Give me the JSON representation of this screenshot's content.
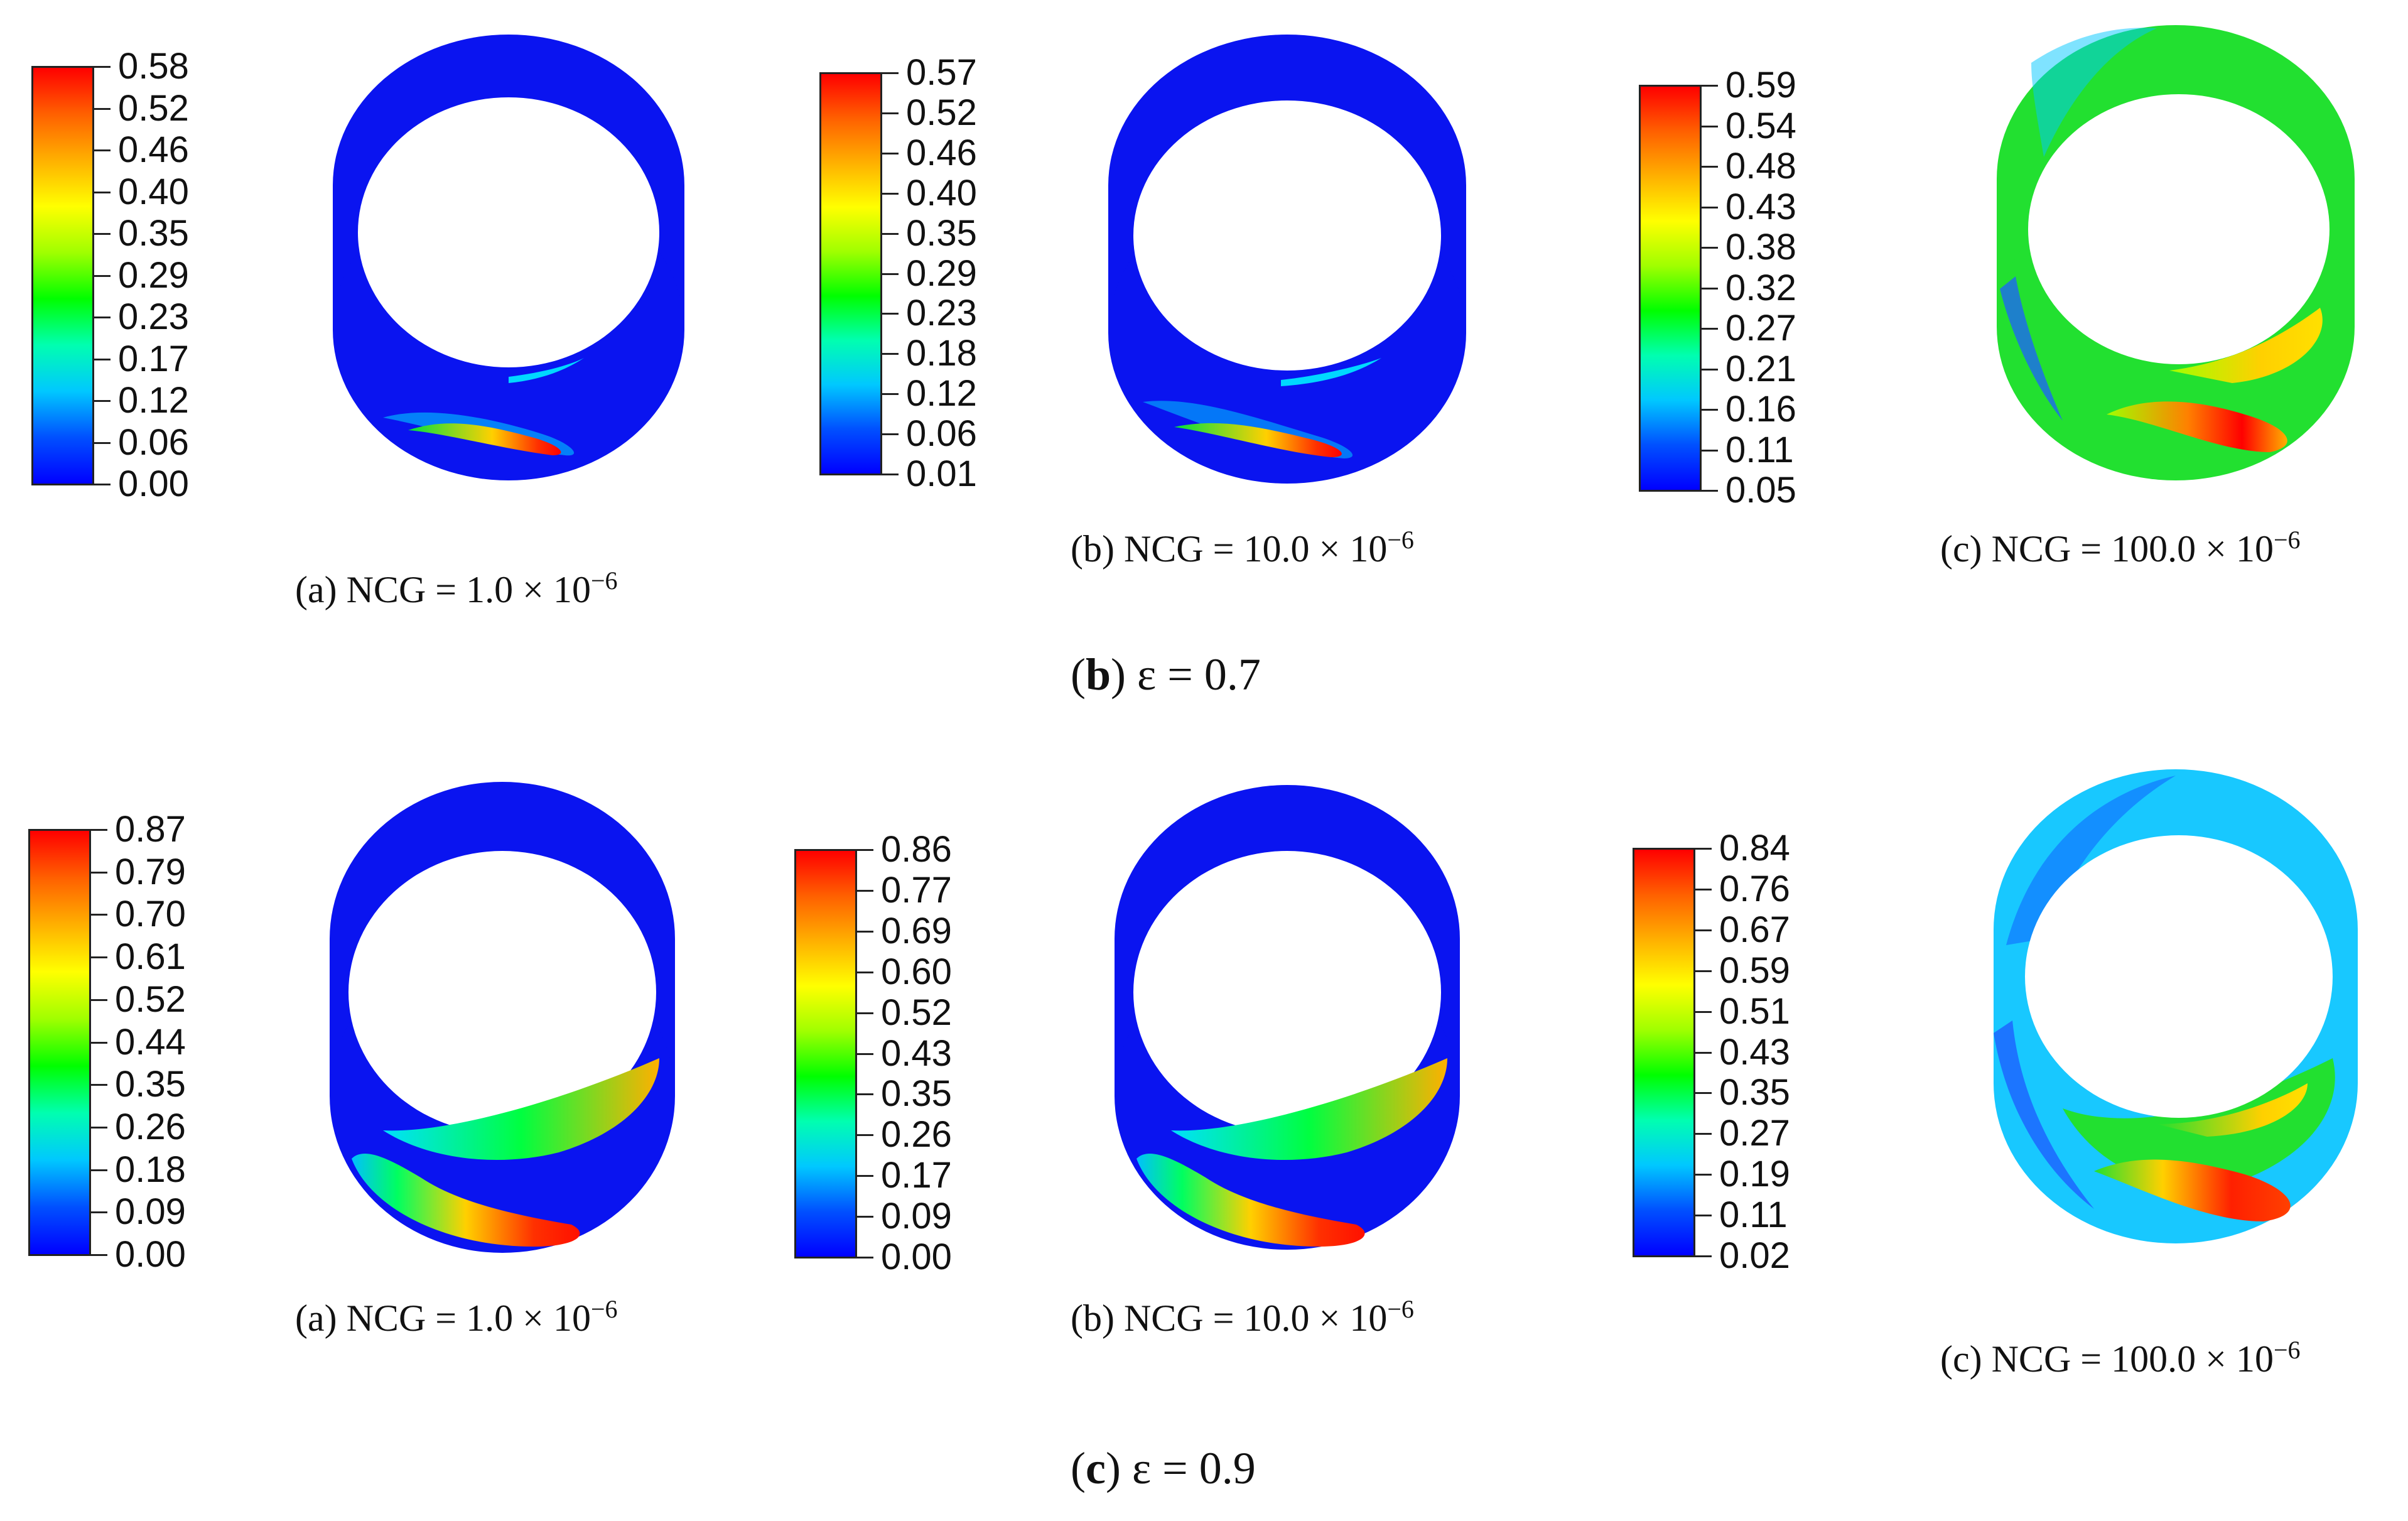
{
  "colors": {
    "rainbow": [
      "#0000ff",
      "#0050ff",
      "#00c8ff",
      "#00ffb0",
      "#00ff00",
      "#a0ff00",
      "#ffff00",
      "#ffb000",
      "#ff6000",
      "#ff0000"
    ],
    "wall_blue": "#0a14f0"
  },
  "rows": [
    {
      "caption": {
        "letter": "b",
        "rest": "ε = 0.7"
      },
      "panels": [
        {
          "id": "b-a",
          "caption": {
            "prefix": "(a) NCG = 1.0 × 10",
            "exp": "−6"
          },
          "colorbar": [
            "0.58",
            "0.52",
            "0.46",
            "0.40",
            "0.35",
            "0.29",
            "0.23",
            "0.17",
            "0.12",
            "0.06",
            "0.00"
          ]
        },
        {
          "id": "b-b",
          "caption": {
            "prefix": "(b) NCG = 10.0 × 10",
            "exp": "−6"
          },
          "colorbar": [
            "0.57",
            "0.52",
            "0.46",
            "0.40",
            "0.35",
            "0.29",
            "0.23",
            "0.18",
            "0.12",
            "0.06",
            "0.01"
          ]
        },
        {
          "id": "b-c",
          "caption": {
            "prefix": "(c) NCG = 100.0 × 10",
            "exp": "−6"
          },
          "colorbar": [
            "0.59",
            "0.54",
            "0.48",
            "0.43",
            "0.38",
            "0.32",
            "0.27",
            "0.21",
            "0.16",
            "0.11",
            "0.05"
          ]
        }
      ]
    },
    {
      "caption": {
        "letter": "c",
        "rest": "ε = 0.9"
      },
      "panels": [
        {
          "id": "c-a",
          "caption": {
            "prefix": "(a) NCG = 1.0 × 10",
            "exp": "−6"
          },
          "colorbar": [
            "0.87",
            "0.79",
            "0.70",
            "0.61",
            "0.52",
            "0.44",
            "0.35",
            "0.26",
            "0.18",
            "0.09",
            "0.00"
          ]
        },
        {
          "id": "c-b",
          "caption": {
            "prefix": "(b) NCG = 10.0 × 10",
            "exp": "−6"
          },
          "colorbar": [
            "0.86",
            "0.77",
            "0.69",
            "0.60",
            "0.52",
            "0.43",
            "0.35",
            "0.26",
            "0.17",
            "0.09",
            "0.00"
          ]
        },
        {
          "id": "c-c",
          "caption": {
            "prefix": "(c) NCG = 100.0 × 10",
            "exp": "−6"
          },
          "colorbar": [
            "0.84",
            "0.76",
            "0.67",
            "0.59",
            "0.51",
            "0.43",
            "0.35",
            "0.27",
            "0.19",
            "0.11",
            "0.02"
          ]
        }
      ]
    }
  ]
}
